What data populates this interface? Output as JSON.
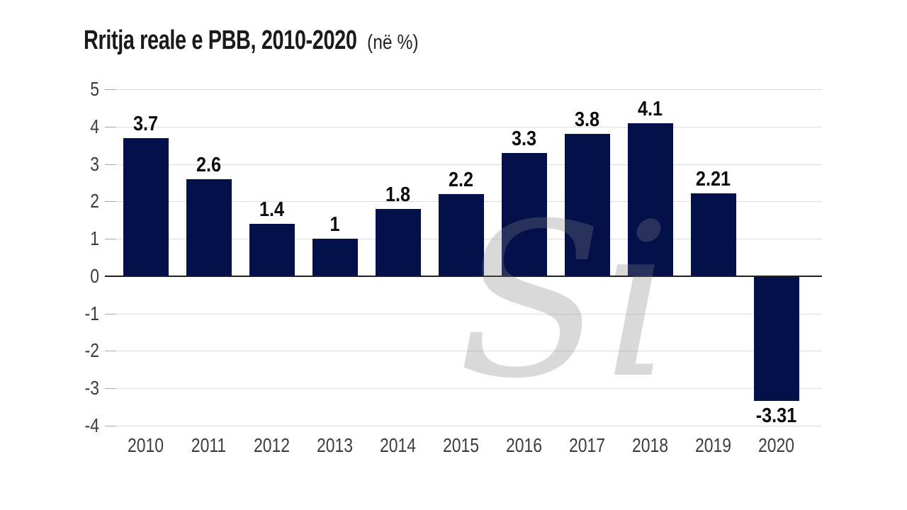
{
  "title": {
    "main": "Rritja reale e PBB, 2010-2020",
    "suffix": "(në %)"
  },
  "watermark": {
    "text": "Si"
  },
  "colors": {
    "bar": "#041049",
    "gridline": "#dcdcdc",
    "zero_line": "#1f1f1f",
    "tick": "#a8a8a8",
    "axis_label": "#3d3d3d",
    "value_label": "#0d0d0d",
    "title": "#1a1a1a",
    "watermark": "rgba(128,128,128,0.3)",
    "background": "#ffffff"
  },
  "chart_data": {
    "type": "bar",
    "title": "Rritja reale e PBB, 2010-2020 (në %)",
    "categories": [
      "2010",
      "2011",
      "2012",
      "2013",
      "2014",
      "2015",
      "2016",
      "2017",
      "2018",
      "2019",
      "2020"
    ],
    "values": [
      3.7,
      2.6,
      1.4,
      1,
      1.8,
      2.2,
      3.3,
      3.8,
      4.1,
      2.21,
      -3.31
    ],
    "value_labels": [
      "3.7",
      "2.6",
      "1.4",
      "1",
      "1.8",
      "2.2",
      "3.3",
      "3.8",
      "4.1",
      "2.21",
      "-3.31"
    ],
    "xlabel": "",
    "ylabel": "",
    "ylim": [
      -4,
      5
    ],
    "yticks": [
      5,
      4,
      3,
      2,
      1,
      0,
      -1,
      -2,
      -3,
      -4
    ],
    "grid": true,
    "legend": false,
    "bar_color": "#041049",
    "value_label_position": "outside-end"
  }
}
